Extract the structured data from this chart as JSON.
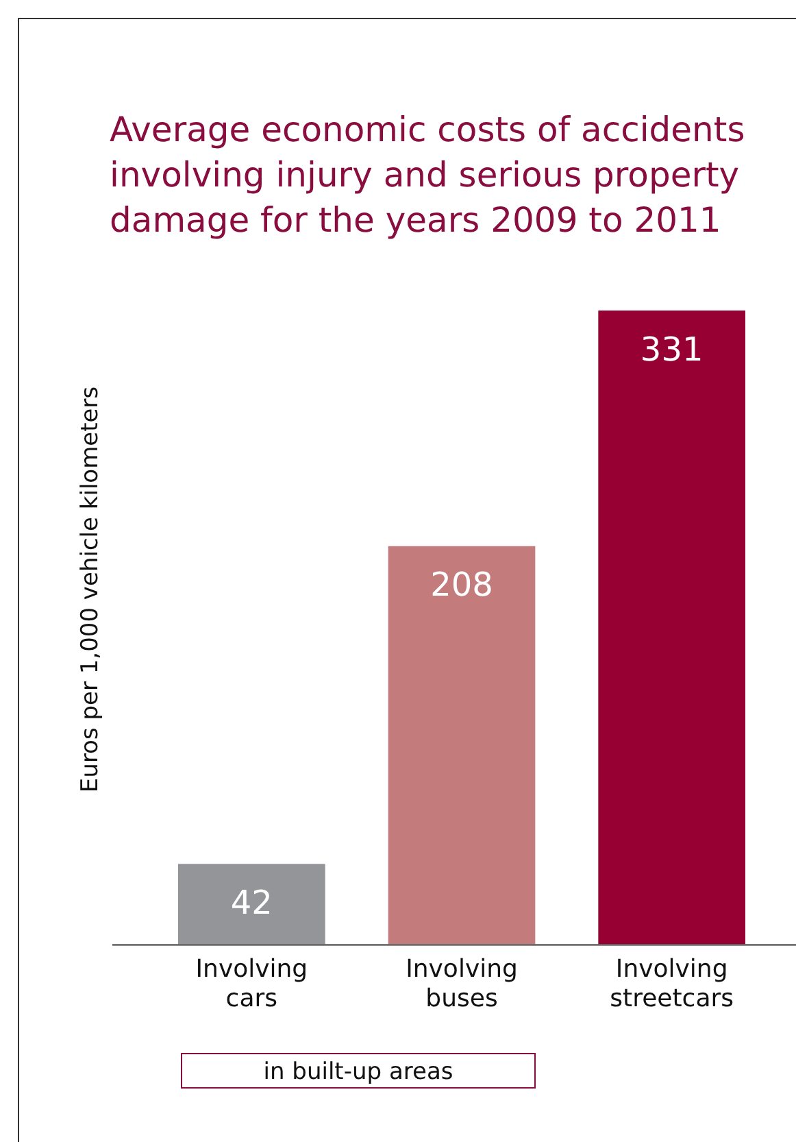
{
  "chart_data": {
    "type": "bar",
    "title": "Average economic costs of accidents involving injury and serious property damage for the years 2009 to 2011",
    "ylabel": "Euros per 1,000 vehicle kilometers",
    "categories": [
      "Involving cars",
      "Involving buses",
      "Involving streetcars"
    ],
    "values": [
      42,
      208,
      331
    ],
    "colors": [
      "#939598",
      "#c47b7c",
      "#970032"
    ],
    "data_labels": true,
    "grid": false,
    "legend": false,
    "annotations": [
      "in built-up areas"
    ]
  }
}
